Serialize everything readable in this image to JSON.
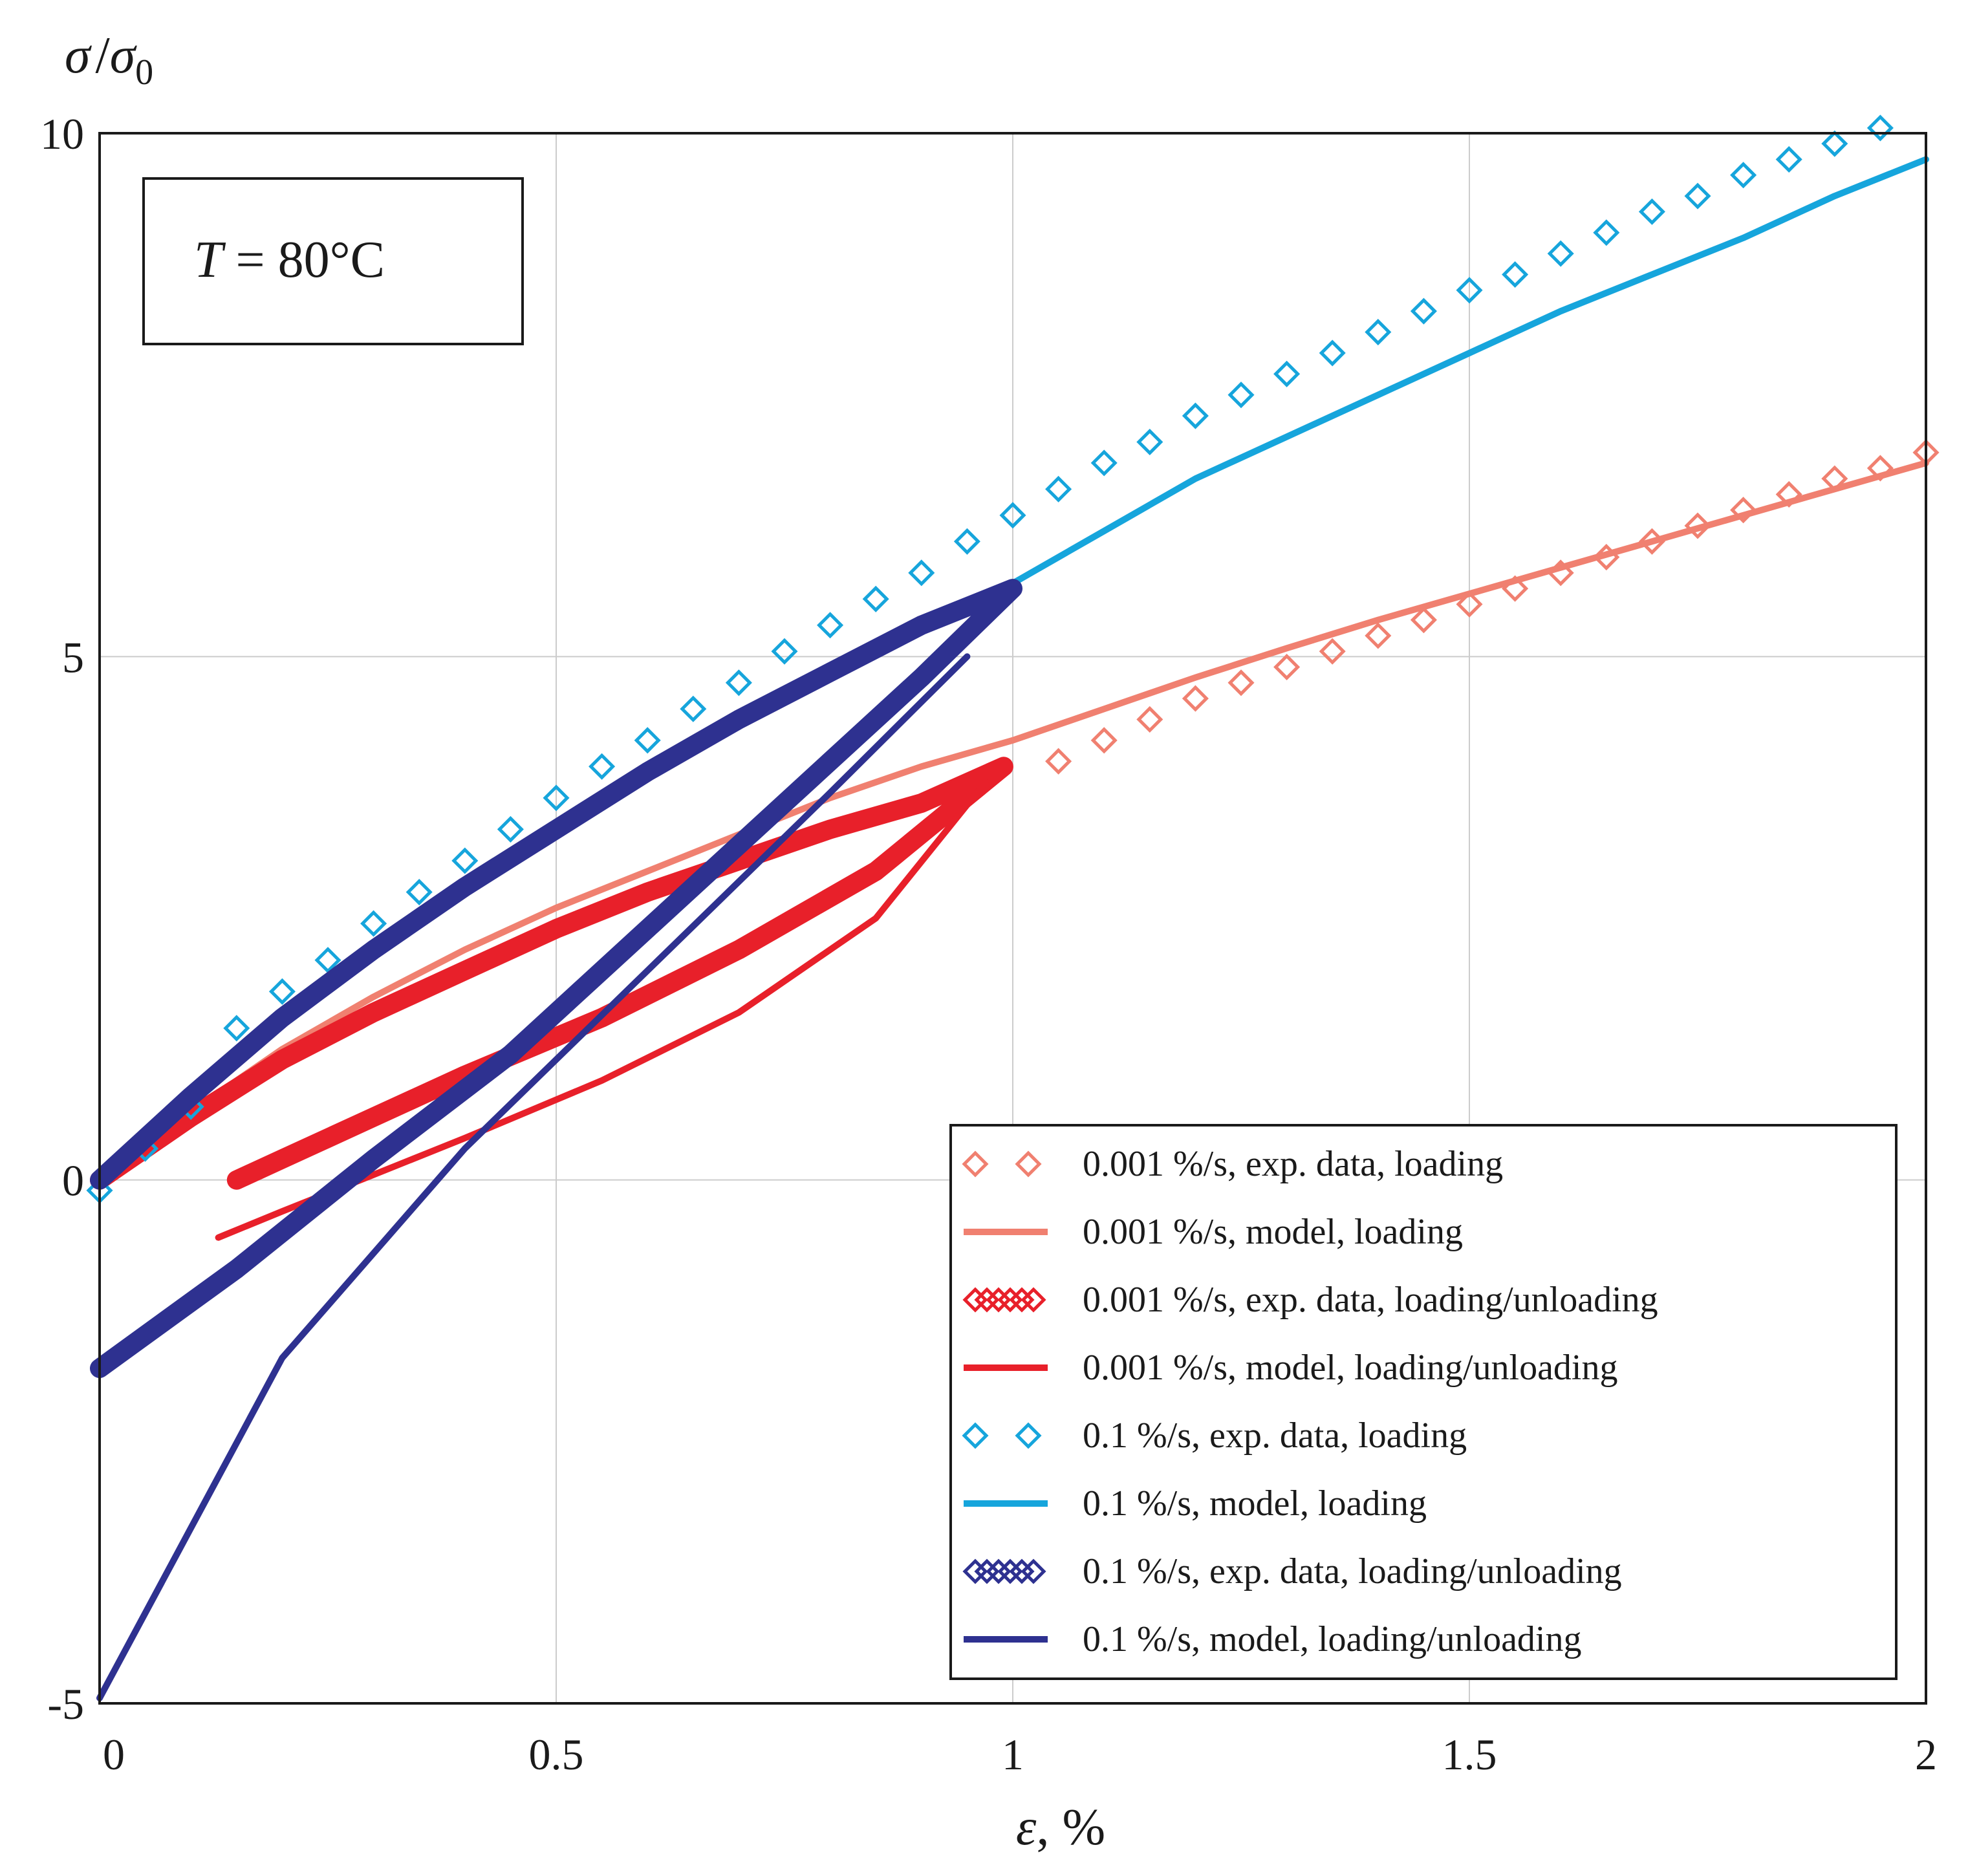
{
  "chart_data": {
    "type": "line",
    "title": "",
    "annotation": {
      "prefix": "T",
      "value": " = 80°C"
    },
    "xlabel": {
      "symbol": "ε",
      "unit": ", %"
    },
    "ylabel": {
      "main": "σ",
      "slash": "/",
      "base": "σ",
      "sub": "0"
    },
    "xlim": [
      0,
      2
    ],
    "ylim": [
      -5,
      10
    ],
    "xticks": [
      0,
      0.5,
      1,
      1.5,
      2
    ],
    "xtick_labels": [
      "0",
      "0.5",
      "1",
      "1.5",
      "2"
    ],
    "yticks": [
      -5,
      0,
      5,
      10
    ],
    "ytick_labels": [
      "-5",
      "0",
      "5",
      "10"
    ],
    "grid": true,
    "legend_position": "bottom-right",
    "series": [
      {
        "name": "0.001 %/s, exp. data, loading",
        "kind": "markers",
        "marker": "diamond-open",
        "color": "#f08070",
        "x": [
          1.05,
          1.1,
          1.15,
          1.2,
          1.25,
          1.3,
          1.35,
          1.4,
          1.45,
          1.5,
          1.55,
          1.6,
          1.65,
          1.7,
          1.75,
          1.8,
          1.85,
          1.9,
          1.95,
          2.0
        ],
        "y": [
          4.0,
          4.2,
          4.4,
          4.6,
          4.75,
          4.9,
          5.05,
          5.2,
          5.35,
          5.5,
          5.65,
          5.8,
          5.95,
          6.1,
          6.25,
          6.4,
          6.55,
          6.7,
          6.8,
          6.95
        ]
      },
      {
        "name": "0.001 %/s, model, loading",
        "kind": "line",
        "color": "#f08070",
        "width": 10,
        "x": [
          0,
          0.1,
          0.2,
          0.3,
          0.4,
          0.5,
          0.6,
          0.7,
          0.8,
          0.9,
          1.0,
          1.1,
          1.2,
          1.3,
          1.4,
          1.5,
          1.6,
          1.7,
          1.8,
          1.9,
          2.0
        ],
        "y": [
          0.0,
          0.65,
          1.25,
          1.75,
          2.2,
          2.6,
          2.95,
          3.3,
          3.65,
          3.95,
          4.2,
          4.5,
          4.8,
          5.08,
          5.35,
          5.6,
          5.85,
          6.1,
          6.35,
          6.6,
          6.85
        ]
      },
      {
        "name": "0.001 %/s, exp. data, loading/unloading",
        "kind": "band",
        "color": "#e8202a",
        "width": 30,
        "x": [
          0,
          0.1,
          0.2,
          0.3,
          0.4,
          0.5,
          0.6,
          0.7,
          0.8,
          0.9,
          0.99,
          0.85,
          0.7,
          0.55,
          0.4,
          0.3,
          0.2,
          0.15
        ],
        "y": [
          0.0,
          0.6,
          1.15,
          1.6,
          2.0,
          2.4,
          2.75,
          3.05,
          3.35,
          3.6,
          3.95,
          2.95,
          2.2,
          1.55,
          1.0,
          0.6,
          0.2,
          0.0
        ]
      },
      {
        "name": "0.001 %/s, model, loading/unloading",
        "kind": "line",
        "color": "#e8202a",
        "width": 10,
        "x": [
          0.97,
          0.85,
          0.7,
          0.55,
          0.4,
          0.3,
          0.2,
          0.13
        ],
        "y": [
          3.8,
          2.5,
          1.6,
          0.95,
          0.4,
          0.05,
          -0.3,
          -0.55
        ]
      },
      {
        "name": "0.1 %/s, exp. data, loading",
        "kind": "markers",
        "marker": "diamond-open",
        "color": "#16a5dc",
        "x": [
          0,
          0.05,
          0.1,
          0.15,
          0.2,
          0.25,
          0.3,
          0.35,
          0.4,
          0.45,
          0.5,
          0.55,
          0.6,
          0.65,
          0.7,
          0.75,
          0.8,
          0.85,
          0.9,
          0.95,
          1.0,
          1.05,
          1.1,
          1.15,
          1.2,
          1.25,
          1.3,
          1.35,
          1.4,
          1.45,
          1.5,
          1.55,
          1.6,
          1.65,
          1.7,
          1.75,
          1.8,
          1.85,
          1.9,
          1.95
        ],
        "y": [
          -0.1,
          0.3,
          0.7,
          1.45,
          1.8,
          2.1,
          2.45,
          2.75,
          3.05,
          3.35,
          3.65,
          3.95,
          4.2,
          4.5,
          4.75,
          5.05,
          5.3,
          5.55,
          5.8,
          6.1,
          6.35,
          6.6,
          6.85,
          7.05,
          7.3,
          7.5,
          7.7,
          7.9,
          8.1,
          8.3,
          8.5,
          8.65,
          8.85,
          9.05,
          9.25,
          9.4,
          9.6,
          9.75,
          9.9,
          10.05
        ]
      },
      {
        "name": "0.1 %/s, model, loading",
        "kind": "line",
        "color": "#16a5dc",
        "width": 10,
        "x": [
          1.0,
          1.1,
          1.2,
          1.3,
          1.4,
          1.5,
          1.6,
          1.7,
          1.8,
          1.9,
          2.0
        ],
        "y": [
          5.7,
          6.2,
          6.7,
          7.1,
          7.5,
          7.9,
          8.3,
          8.65,
          9.0,
          9.4,
          9.75
        ]
      },
      {
        "name": "0.1 %/s, exp. data, loading/unloading",
        "kind": "band",
        "color": "#2e3190",
        "width": 30,
        "x": [
          0,
          0.1,
          0.2,
          0.3,
          0.4,
          0.5,
          0.6,
          0.7,
          0.8,
          0.9,
          1.0,
          0.9,
          0.75,
          0.6,
          0.45,
          0.3,
          0.15,
          0
        ],
        "y": [
          0.0,
          0.8,
          1.55,
          2.2,
          2.8,
          3.35,
          3.9,
          4.4,
          4.85,
          5.3,
          5.65,
          4.8,
          3.6,
          2.4,
          1.2,
          0.2,
          -0.85,
          -1.8
        ]
      },
      {
        "name": "0.1 %/s, model, loading/unloading",
        "kind": "line",
        "color": "#2e3190",
        "width": 10,
        "x": [
          0.95,
          0.8,
          0.6,
          0.4,
          0.2,
          0
        ],
        "y": [
          5.0,
          3.7,
          2.0,
          0.3,
          -1.7,
          -4.95
        ]
      }
    ]
  }
}
